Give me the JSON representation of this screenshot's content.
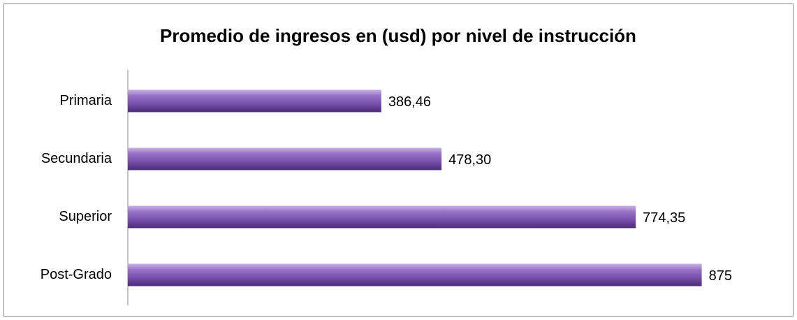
{
  "chart_data": {
    "type": "bar",
    "orientation": "horizontal",
    "title": "Promedio de ingresos en (usd) por nivel de instrucción",
    "categories": [
      "Primaria",
      "Secundaria",
      "Superior",
      "Post-Grado"
    ],
    "values": [
      386.46,
      478.3,
      774.35,
      875
    ],
    "value_labels": [
      "386,46",
      "478,30",
      "774,35",
      "875"
    ],
    "color": "#7b52ad",
    "xlim": [
      0,
      1000
    ]
  }
}
